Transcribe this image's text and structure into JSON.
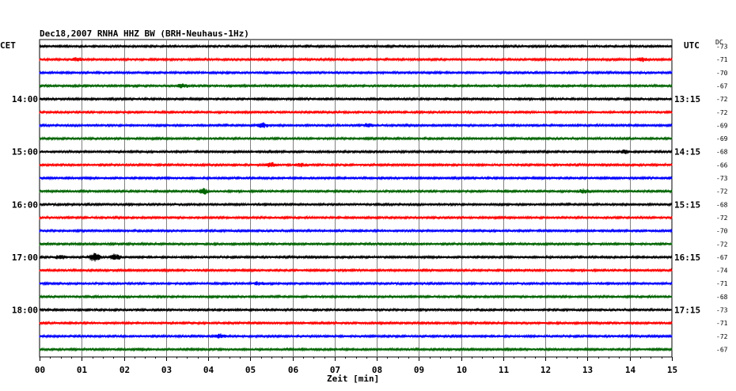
{
  "chart_data": {
    "type": "line",
    "title": "Dec18,2007   RNHA HHZ BW (BRH-Neuhaus-1Hz)",
    "left_tz": "CET",
    "right_tz": "UTC",
    "dc_header": "DC",
    "xlabel": "Zeit [min]",
    "xlim": [
      0,
      15
    ],
    "x_ticks": [
      "00",
      "01",
      "02",
      "03",
      "04",
      "05",
      "06",
      "07",
      "08",
      "09",
      "10",
      "11",
      "12",
      "13",
      "14",
      "15"
    ],
    "grid": true,
    "trace_colors": [
      "#000000",
      "#ff0000",
      "#0000ff",
      "#006400"
    ],
    "hour_labels": [
      {
        "trace": 4,
        "left": "14:00",
        "right": "13:15"
      },
      {
        "trace": 8,
        "left": "15:00",
        "right": "14:15"
      },
      {
        "trace": 12,
        "left": "16:00",
        "right": "15:15"
      },
      {
        "trace": 16,
        "left": "17:00",
        "right": "16:15"
      },
      {
        "trace": 20,
        "left": "18:00",
        "right": "17:15"
      }
    ],
    "dc_offsets": [
      "-73",
      "-71",
      "-70",
      "-67",
      "-72",
      "-72",
      "-69",
      "-69",
      "-68",
      "-66",
      "-73",
      "-72",
      "-68",
      "-72",
      "-70",
      "-72",
      "-67",
      "-74",
      "-71",
      "-68",
      "-73",
      "-71",
      "-72",
      "-67"
    ],
    "events": [
      {
        "trace": 1,
        "min": 0.9,
        "amp": 2.0
      },
      {
        "trace": 1,
        "min": 14.3,
        "amp": 2.0
      },
      {
        "trace": 3,
        "min": 3.4,
        "amp": 2.5
      },
      {
        "trace": 6,
        "min": 5.3,
        "amp": 3.0
      },
      {
        "trace": 6,
        "min": 7.8,
        "amp": 2.0
      },
      {
        "trace": 8,
        "min": 13.9,
        "amp": 2.0
      },
      {
        "trace": 9,
        "min": 5.5,
        "amp": 3.0
      },
      {
        "trace": 9,
        "min": 6.2,
        "amp": 2.0
      },
      {
        "trace": 11,
        "min": 3.9,
        "amp": 3.5
      },
      {
        "trace": 11,
        "min": 12.9,
        "amp": 2.5
      },
      {
        "trace": 16,
        "min": 0.5,
        "amp": 2.5
      },
      {
        "trace": 16,
        "min": 1.3,
        "amp": 6.0
      },
      {
        "trace": 16,
        "min": 1.8,
        "amp": 4.0
      },
      {
        "trace": 18,
        "min": 5.2,
        "amp": 2.0
      },
      {
        "trace": 22,
        "min": 4.3,
        "amp": 2.5
      }
    ]
  }
}
